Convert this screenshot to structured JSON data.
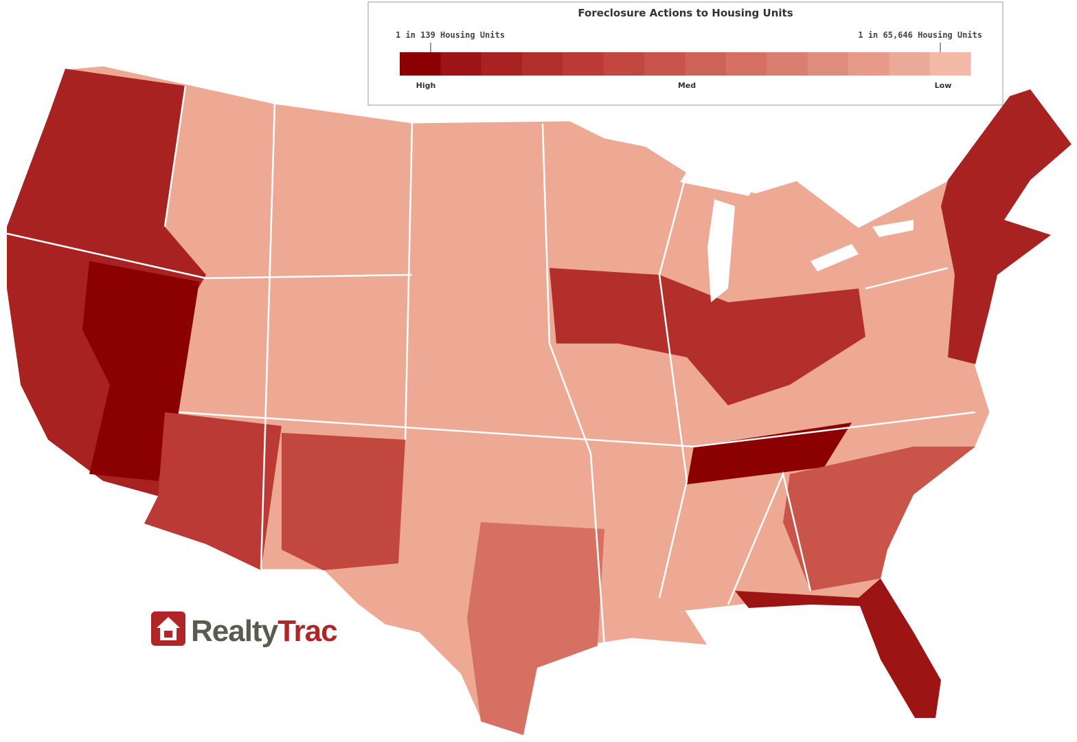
{
  "legend": {
    "title": "Foreclosure Actions to Housing Units",
    "high_end_label": "1 in 139 Housing Units",
    "low_end_label": "1 in 65,646 Housing Units",
    "levels": [
      "High",
      "Med",
      "Low"
    ],
    "color_scale": [
      "#8b0000",
      "#9c1414",
      "#a82222",
      "#b22f2c",
      "#bb3a35",
      "#c2473f",
      "#c9544a",
      "#cf6256",
      "#d57062",
      "#da7e6f",
      "#e08c7c",
      "#e69b8a",
      "#ebaa98",
      "#f2b9a6"
    ]
  },
  "logo": {
    "word_left": "Realty",
    "word_right": "Trac"
  }
}
